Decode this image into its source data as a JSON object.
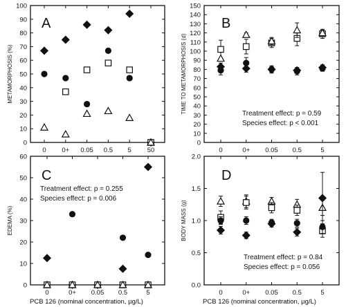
{
  "figure": {
    "shared_xlabel": "PCB 126 (nominal concentration, µg/L)"
  },
  "chart_data": [
    {
      "panel": "A",
      "type": "scatter",
      "categories": [
        "0",
        "0+",
        "0.05",
        "0.5",
        "5",
        "50"
      ],
      "ylabel": "METAMORPHOSIS (%)",
      "xlabel": "",
      "ylim": [
        0,
        100
      ],
      "yticks": [
        0,
        10,
        20,
        30,
        40,
        50,
        60,
        70,
        80,
        90,
        100
      ],
      "series": [
        {
          "marker": "diamond",
          "values": [
            67,
            75,
            86,
            82,
            94,
            0
          ]
        },
        {
          "marker": "circle",
          "values": [
            50,
            47,
            28,
            67,
            47,
            0
          ]
        },
        {
          "marker": "square",
          "values": [
            null,
            37,
            53,
            58,
            53,
            0
          ]
        },
        {
          "marker": "triangle",
          "values": [
            11,
            6,
            21,
            23,
            18,
            0
          ]
        }
      ]
    },
    {
      "panel": "B",
      "type": "scatter",
      "categories": [
        "0",
        "0+",
        "0.05",
        "0.5",
        "5"
      ],
      "ylabel": "TIME TO METAMORPHOSIS (d)",
      "xlabel": "",
      "ylim": [
        0,
        150
      ],
      "yticks": [
        0,
        10,
        20,
        30,
        40,
        50,
        60,
        70,
        80,
        90,
        100,
        110,
        120,
        130,
        140,
        150
      ],
      "series": [
        {
          "marker": "square",
          "values": [
            102,
            105,
            109,
            114,
            119
          ],
          "err": [
            10,
            8,
            5,
            8,
            5
          ]
        },
        {
          "marker": "triangle",
          "values": [
            92,
            118,
            111,
            123,
            120
          ],
          "err": [
            0,
            2,
            4,
            8,
            3
          ]
        },
        {
          "marker": "circle",
          "values": [
            79,
            87,
            80,
            78,
            81
          ],
          "err": [
            5,
            6,
            4,
            4,
            3
          ]
        },
        {
          "marker": "diamond",
          "values": [
            83,
            81,
            80,
            79,
            82
          ],
          "err": [
            4,
            4,
            3,
            3,
            3
          ]
        }
      ],
      "annotations": [
        "Treatment effect: p = 0.59",
        "Species effect: p < 0.001"
      ]
    },
    {
      "panel": "C",
      "type": "scatter",
      "categories": [
        "0",
        "0+",
        "0.05",
        "0.5",
        "5"
      ],
      "ylabel": "EDEMA (%)",
      "xlabel": "",
      "ylim": [
        0,
        60
      ],
      "yticks": [
        0,
        10,
        20,
        30,
        40,
        50,
        60
      ],
      "series": [
        {
          "marker": "diamond",
          "values": [
            12.5,
            0,
            0,
            7.5,
            55
          ]
        },
        {
          "marker": "circle",
          "values": [
            0,
            33,
            0,
            22,
            14
          ]
        },
        {
          "marker": "square",
          "values": [
            0,
            0,
            0,
            0,
            0
          ]
        },
        {
          "marker": "triangle",
          "values": [
            0,
            0,
            0,
            0,
            0
          ]
        }
      ],
      "annotations": [
        "Treatment effect: p = 0.255",
        "Species effect: p = 0.006"
      ]
    },
    {
      "panel": "D",
      "type": "scatter",
      "categories": [
        "0",
        "0+",
        "0.05",
        "0.5",
        "5"
      ],
      "ylabel": "BODY MASS (g)",
      "xlabel": "",
      "ylim": [
        0,
        2.0
      ],
      "yticks": [
        0,
        0.5,
        1.0,
        1.5,
        2.0
      ],
      "series": [
        {
          "marker": "triangle",
          "values": [
            1.3,
            1.3,
            1.3,
            1.25,
            1.2
          ],
          "err": [
            0.08,
            0.1,
            0.06,
            0.08,
            0.12
          ]
        },
        {
          "marker": "square",
          "values": [
            1.05,
            1.28,
            1.2,
            1.16,
            0.84
          ],
          "err": [
            0.1,
            0.1,
            0.08,
            0.08,
            0.1
          ]
        },
        {
          "marker": "circle",
          "values": [
            1.0,
            1.0,
            0.97,
            0.96,
            0.9
          ],
          "err": [
            0.06,
            0.06,
            0.05,
            0.06,
            0.1
          ]
        },
        {
          "marker": "diamond",
          "values": [
            0.85,
            0.77,
            0.95,
            0.82,
            1.35
          ],
          "err": [
            0.06,
            0.05,
            0.05,
            0.06,
            0.4
          ]
        }
      ],
      "annotations": [
        "Treatment effect: p = 0.84",
        "Species effect: p = 0.056"
      ]
    }
  ]
}
